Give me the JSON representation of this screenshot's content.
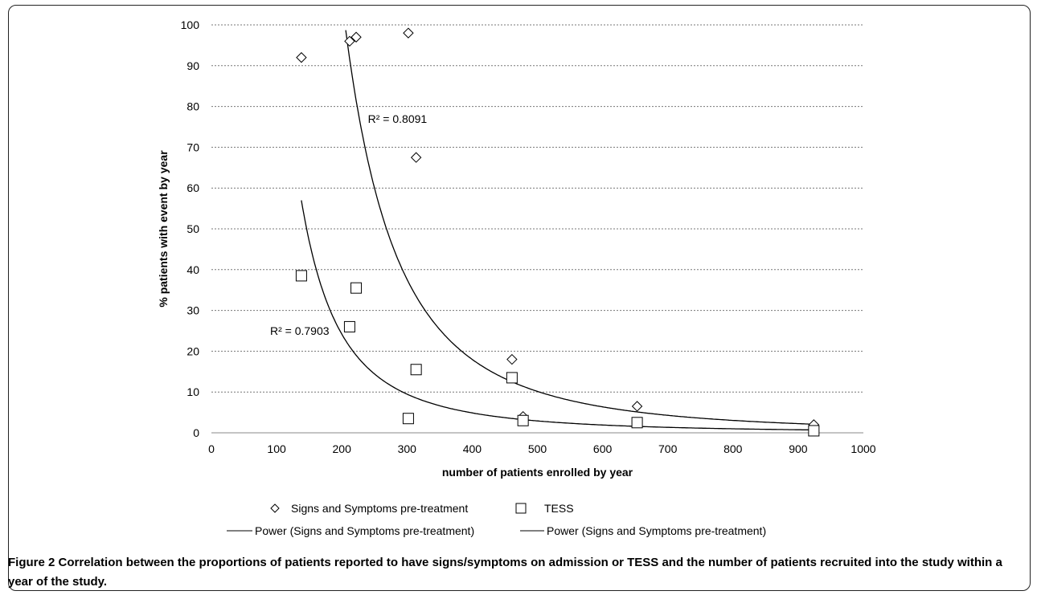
{
  "figure": {
    "caption_label": "Figure 2",
    "caption_text": " Correlation between the proportions of patients reported to have signs/symptoms on admission or TESS and the number of patients recruited into the study within a year of the study."
  },
  "chart_data": {
    "type": "scatter",
    "xlabel": "number of patients enrolled by year",
    "ylabel": "% patients with event by year",
    "xlim": [
      0,
      1000
    ],
    "ylim": [
      0,
      100
    ],
    "xticks": [
      0,
      100,
      200,
      300,
      400,
      500,
      600,
      700,
      800,
      900,
      1000
    ],
    "yticks": [
      0,
      10,
      20,
      30,
      40,
      50,
      60,
      70,
      80,
      90,
      100
    ],
    "grid": "horizontal dashed",
    "legend_position": "bottom",
    "series": [
      {
        "name": "Signs and Symptoms pre-treatment",
        "marker": "diamond",
        "x": [
          138,
          212,
          222,
          302,
          314,
          461,
          478,
          653,
          924
        ],
        "y": [
          92,
          96,
          97,
          98,
          67.5,
          18,
          4,
          6.5,
          2
        ]
      },
      {
        "name": "TESS",
        "marker": "square",
        "x": [
          138,
          212,
          222,
          302,
          314,
          461,
          478,
          653,
          924
        ],
        "y": [
          38.5,
          26,
          35.5,
          3.5,
          15.5,
          13.5,
          3,
          2.5,
          0.5
        ]
      }
    ],
    "trendlines": [
      {
        "name": "Power (Signs and Symptoms pre-treatment)",
        "type": "power",
        "a": 85000000,
        "b": -2.565,
        "x_range": [
          200,
          924
        ],
        "r2_label": "R² = 0.8091"
      },
      {
        "name": "Power (Signs and Symptoms pre-treatment)",
        "type": "power",
        "a": 5000000,
        "b": -2.31,
        "x_range": [
          138,
          924
        ],
        "r2_label": "R² = 0.7903"
      }
    ]
  }
}
